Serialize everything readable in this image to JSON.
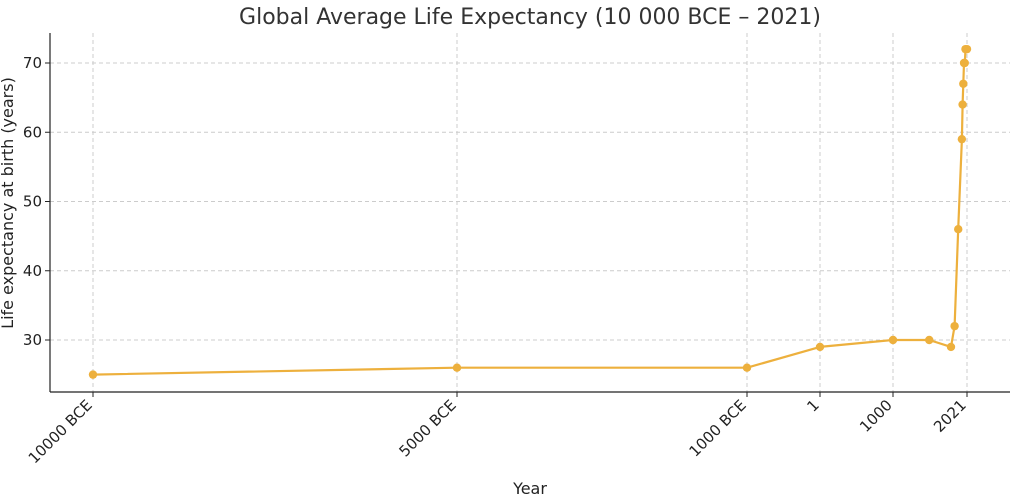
{
  "chart_data": {
    "type": "line",
    "title": "Global Average Life Expectancy (10 000 BCE – 2021)",
    "xlabel": "Year",
    "ylabel": "Life expectancy at birth (years)",
    "ylim": [
      22.5,
      74.5
    ],
    "xlim": [
      -10600,
      2600
    ],
    "grid": true,
    "color": "#EDB03D",
    "yticks": [
      30,
      40,
      50,
      60,
      70
    ],
    "xticks": [
      {
        "value": -10000,
        "label": "10000 BCE"
      },
      {
        "value": -5000,
        "label": "5000 BCE"
      },
      {
        "value": -1000,
        "label": "1000 BCE"
      },
      {
        "value": 1,
        "label": "1"
      },
      {
        "value": 1000,
        "label": "1000"
      },
      {
        "value": 2021,
        "label": "2021"
      }
    ],
    "x": [
      -10000,
      -5000,
      -1000,
      1,
      1000,
      1500,
      1800,
      1850,
      1900,
      1950,
      1960,
      1970,
      1980,
      1990,
      2000,
      2021
    ],
    "y": [
      25,
      26,
      26,
      29,
      30,
      30,
      29,
      32,
      46,
      59,
      64,
      67,
      70,
      70,
      72,
      72
    ]
  }
}
